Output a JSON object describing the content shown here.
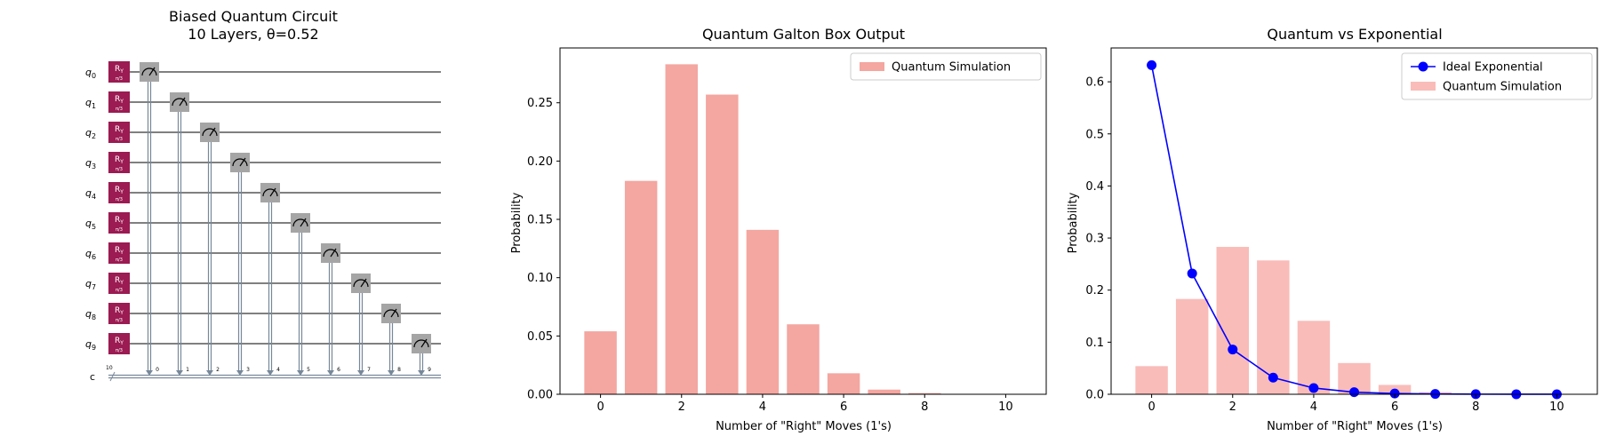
{
  "circuit": {
    "title_line1": "Biased Quantum Circuit",
    "title_line2": "10 Layers, θ=0.52",
    "qubits": [
      "q0",
      "q1",
      "q2",
      "q3",
      "q4",
      "q5",
      "q6",
      "q7",
      "q8",
      "q9"
    ],
    "gate_label": "R",
    "gate_label_sub": "Y",
    "gate_param": "π/3",
    "classical_register": "c",
    "classical_width": "10",
    "classical_bits": [
      "0",
      "1",
      "2",
      "3",
      "4",
      "5",
      "6",
      "7",
      "8",
      "9"
    ],
    "colors": {
      "gate": "#9b1b52",
      "measure": "#a5a5a5",
      "wire": "#000000",
      "classical": "#778899"
    }
  },
  "chart_data": [
    {
      "type": "bar",
      "title": "Quantum Galton Box Output",
      "xlabel": "Number of \"Right\" Moves (1's)",
      "ylabel": "Probability",
      "x": [
        0,
        1,
        2,
        3,
        4,
        5,
        6,
        7,
        8,
        9,
        10
      ],
      "series": [
        {
          "name": "Quantum Simulation",
          "values": [
            0.054,
            0.183,
            0.283,
            0.257,
            0.141,
            0.06,
            0.018,
            0.004,
            0.001,
            0.0,
            0.0
          ],
          "color": "#f4a6a0"
        }
      ],
      "xlim": [
        -1,
        11
      ],
      "ylim": [
        0,
        0.297
      ],
      "xticks": [
        0,
        2,
        4,
        6,
        8,
        10
      ],
      "yticks": [
        0.0,
        0.05,
        0.1,
        0.15,
        0.2,
        0.25
      ],
      "ytick_labels": [
        "0.00",
        "0.05",
        "0.10",
        "0.15",
        "0.20",
        "0.25"
      ],
      "grid": false,
      "legend": "top-right"
    },
    {
      "type": "bar+line",
      "title": "Quantum vs Exponential",
      "xlabel": "Number of \"Right\" Moves (1's)",
      "ylabel": "Probability",
      "x": [
        0,
        1,
        2,
        3,
        4,
        5,
        6,
        7,
        8,
        9,
        10
      ],
      "series": [
        {
          "name": "Ideal Exponential",
          "kind": "line",
          "values": [
            0.632,
            0.232,
            0.086,
            0.032,
            0.012,
            0.004,
            0.0015,
            0.0006,
            0.0002,
            0.0001,
            3e-05
          ],
          "color": "#0000ff"
        },
        {
          "name": "Quantum Simulation",
          "kind": "bar",
          "values": [
            0.054,
            0.183,
            0.283,
            0.257,
            0.141,
            0.06,
            0.018,
            0.004,
            0.001,
            0.0,
            0.0
          ],
          "color": "#f9bcb8"
        }
      ],
      "xlim": [
        -1,
        11
      ],
      "ylim": [
        0,
        0.665
      ],
      "xticks": [
        0,
        2,
        4,
        6,
        8,
        10
      ],
      "yticks": [
        0.0,
        0.1,
        0.2,
        0.3,
        0.4,
        0.5,
        0.6
      ],
      "ytick_labels": [
        "0.0",
        "0.1",
        "0.2",
        "0.3",
        "0.4",
        "0.5",
        "0.6"
      ],
      "grid": false,
      "legend": "top-right"
    }
  ]
}
